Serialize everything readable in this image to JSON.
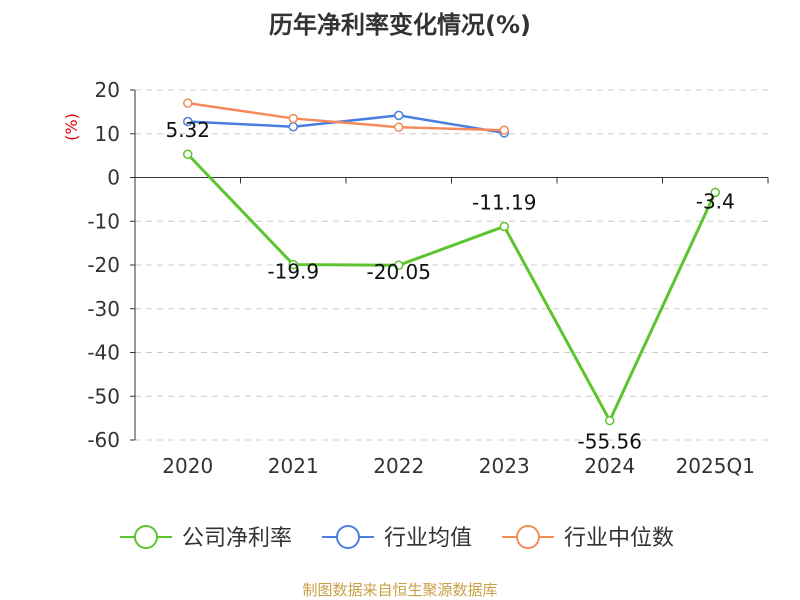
{
  "chart_data": {
    "type": "line",
    "title": "历年净利率变化情况(%)",
    "unit_label": "(%)",
    "categories": [
      "2020",
      "2021",
      "2022",
      "2023",
      "2024",
      "2025Q1"
    ],
    "ylim": [
      -60,
      20
    ],
    "yticks": [
      "20",
      "10",
      "0",
      "-10",
      "-20",
      "-30",
      "-40",
      "-50",
      "-60"
    ],
    "ytick_values": [
      20,
      10,
      0,
      -10,
      -20,
      -30,
      -40,
      -50,
      -60
    ],
    "grid": true,
    "legend_position": "bottom",
    "series": [
      {
        "name": "公司净利率",
        "color": "#5cc42e",
        "values": [
          5.32,
          -19.9,
          -20.05,
          -11.19,
          -55.56,
          -3.4
        ],
        "labels": [
          "5.32",
          "-19.9",
          "-20.05",
          "-11.19",
          "-55.56",
          "-3.4"
        ]
      },
      {
        "name": "行业均值",
        "color": "#4a7fe0",
        "values": [
          12.8,
          11.6,
          14.2,
          10.2,
          null,
          null
        ]
      },
      {
        "name": "行业中位数",
        "color": "#f5895a",
        "values": [
          17.0,
          13.5,
          11.5,
          10.8,
          null,
          null
        ]
      }
    ]
  },
  "footer": {
    "source": "制图数据来自恒生聚源数据库"
  }
}
